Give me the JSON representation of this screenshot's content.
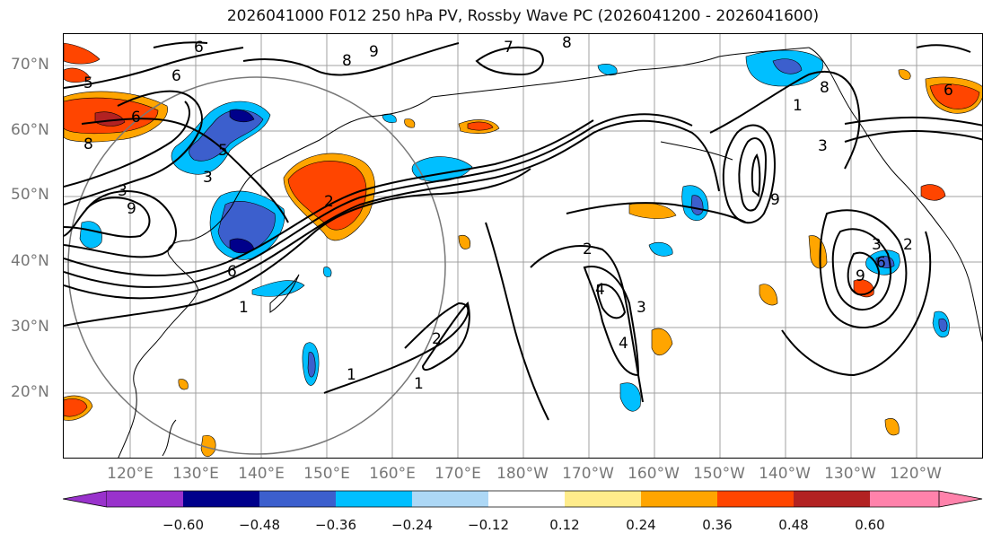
{
  "title": "2026041000 F012 250 hPa PV, Rossby Wave PC (2026041200 - 2026041600)",
  "lat_labels": [
    "70°N",
    "60°N",
    "50°N",
    "40°N",
    "30°N",
    "20°N"
  ],
  "lon_labels": [
    "120°E",
    "130°E",
    "140°E",
    "150°E",
    "160°E",
    "170°E",
    "180°W",
    "170°W",
    "160°W",
    "150°W",
    "140°W",
    "130°W",
    "120°W"
  ],
  "contour_labels": [
    "6",
    "9",
    "8",
    "7",
    "8",
    "5",
    "6",
    "6",
    "8",
    "5",
    "3",
    "3",
    "2",
    "9",
    "6",
    "1",
    "1",
    "2",
    "1",
    "2",
    "4",
    "4",
    "3",
    "9",
    "8",
    "1",
    "3",
    "3",
    "9",
    "6",
    "6",
    "2"
  ],
  "colorbar": {
    "labels": [
      "−0.60",
      "−0.48",
      "−0.36",
      "−0.24",
      "−0.12",
      "0.12",
      "0.24",
      "0.36",
      "0.48",
      "0.60"
    ],
    "colors": [
      "#9932cc",
      "#00008b",
      "#3c5fcd",
      "#00bfff",
      "#add8f6",
      "#ffffff",
      "#ffec8b",
      "#ffa500",
      "#ff4500",
      "#b22222",
      "#ff82ab"
    ]
  }
}
